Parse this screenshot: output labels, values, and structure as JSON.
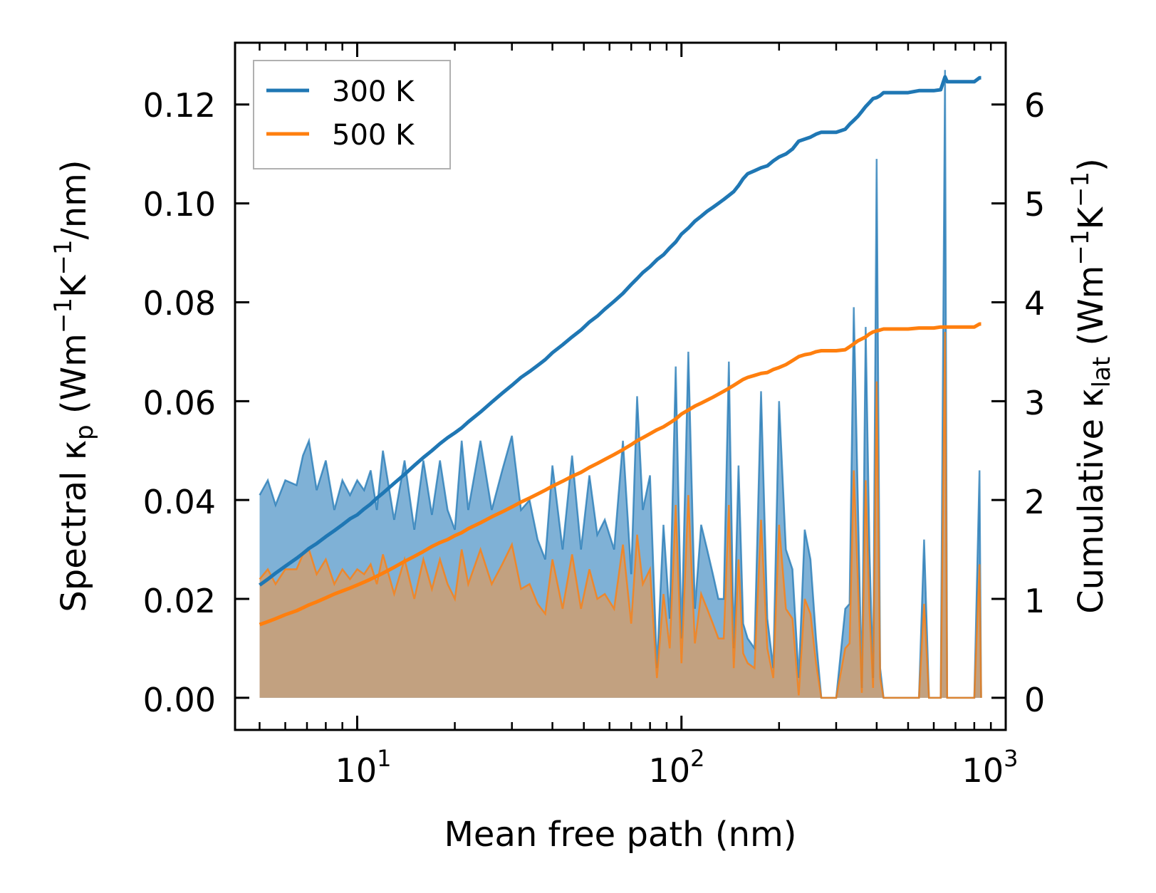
{
  "colors": {
    "t300": "#1f77b4",
    "t500": "#ff7f0e",
    "fill300": "#7fb1d6",
    "fill500": "#c89f78"
  },
  "chart_data": {
    "type": "line",
    "xscale": "log",
    "xlabel": "Mean free path (nm)",
    "ylabel_left": {
      "pre": "Spectral κ",
      "sub": "p",
      "mid": " (Wm",
      "sup1": "−1",
      "k": "K",
      "sup2": "−1",
      "post": "/nm)"
    },
    "ylabel_right": {
      "pre": "Cumulative κ",
      "sub": "lat",
      "mid": " (Wm",
      "sup1": "−1",
      "k": "K",
      "sup2": "−1",
      "post": ")"
    },
    "xlim": [
      4.2,
      1000
    ],
    "ylim_left": [
      -0.0065,
      0.1325
    ],
    "ylim_right": [
      -0.325,
      6.625
    ],
    "x_ticks": [
      {
        "value": 10,
        "base": "10",
        "exp": "1"
      },
      {
        "value": 100,
        "base": "10",
        "exp": "2"
      },
      {
        "value": 1000,
        "base": "10",
        "exp": "3"
      }
    ],
    "y_ticks_left": [
      "0.00",
      "0.02",
      "0.04",
      "0.06",
      "0.08",
      "0.10",
      "0.12"
    ],
    "y_ticks_right": [
      "0",
      "1",
      "2",
      "3",
      "4",
      "5",
      "6"
    ],
    "legend": {
      "position": "top-left",
      "entries": [
        "300 K",
        "500 K"
      ]
    },
    "spectral_300K": {
      "x": [
        5,
        5.3,
        5.6,
        6,
        6.5,
        6.8,
        7.1,
        7.5,
        8,
        8.5,
        9,
        9.5,
        10,
        10.5,
        11,
        11.5,
        12,
        13,
        14,
        15,
        16,
        17,
        18,
        19,
        20,
        21,
        22,
        24,
        26,
        28,
        30,
        32,
        34,
        36,
        38,
        40,
        43,
        46,
        49,
        52,
        55,
        58,
        62,
        66,
        70,
        73,
        76,
        80,
        84,
        88,
        92,
        96,
        100,
        105,
        110,
        115,
        120,
        125,
        130,
        135,
        140,
        145,
        150,
        155,
        160,
        168,
        176,
        184,
        192,
        200,
        210,
        220,
        230,
        240,
        250,
        260,
        270,
        280,
        300,
        320,
        330,
        340,
        350,
        360,
        370,
        380,
        390,
        400,
        410,
        420,
        440,
        470,
        500,
        540,
        560,
        580,
        600,
        630,
        650,
        660,
        670,
        700,
        750,
        800,
        830,
        840
      ],
      "values": [
        0.041,
        0.044,
        0.039,
        0.044,
        0.043,
        0.049,
        0.052,
        0.042,
        0.048,
        0.038,
        0.044,
        0.041,
        0.044,
        0.042,
        0.046,
        0.038,
        0.05,
        0.036,
        0.048,
        0.034,
        0.048,
        0.037,
        0.048,
        0.038,
        0.034,
        0.052,
        0.038,
        0.052,
        0.038,
        0.046,
        0.053,
        0.038,
        0.04,
        0.032,
        0.028,
        0.047,
        0.03,
        0.049,
        0.03,
        0.045,
        0.033,
        0.036,
        0.03,
        0.052,
        0.025,
        0.061,
        0.038,
        0.045,
        0.006,
        0.035,
        0.016,
        0.067,
        0.012,
        0.07,
        0.018,
        0.035,
        0.03,
        0.025,
        0.02,
        0.02,
        0.068,
        0.01,
        0.047,
        0.015,
        0.012,
        0.01,
        0.062,
        0.016,
        0.006,
        0.06,
        0.03,
        0.026,
        0.004,
        0.034,
        0.028,
        0.012,
        0,
        0,
        0,
        0.018,
        0.019,
        0.079,
        0.04,
        0.002,
        0.075,
        0.03,
        0.004,
        0.109,
        0.006,
        0,
        0,
        0,
        0,
        0,
        0.032,
        0,
        0,
        0,
        0.127,
        0,
        0,
        0,
        0,
        0,
        0.046,
        0
      ],
      "cumulative": [
        1.14,
        1.2,
        1.26,
        1.33,
        1.41,
        1.46,
        1.51,
        1.56,
        1.63,
        1.69,
        1.75,
        1.81,
        1.85,
        1.91,
        1.96,
        2.02,
        2.07,
        2.17,
        2.26,
        2.35,
        2.43,
        2.5,
        2.57,
        2.63,
        2.68,
        2.73,
        2.79,
        2.89,
        2.99,
        3.08,
        3.16,
        3.24,
        3.3,
        3.36,
        3.42,
        3.49,
        3.57,
        3.65,
        3.72,
        3.8,
        3.86,
        3.93,
        4.01,
        4.09,
        4.18,
        4.24,
        4.3,
        4.36,
        4.43,
        4.48,
        4.55,
        4.61,
        4.69,
        4.75,
        4.82,
        4.87,
        4.92,
        4.96,
        5.0,
        5.04,
        5.08,
        5.12,
        5.18,
        5.25,
        5.3,
        5.33,
        5.36,
        5.38,
        5.43,
        5.47,
        5.5,
        5.55,
        5.63,
        5.65,
        5.67,
        5.7,
        5.72,
        5.72,
        5.72,
        5.75,
        5.8,
        5.84,
        5.88,
        5.93,
        5.98,
        6.02,
        6.06,
        6.07,
        6.09,
        6.12,
        6.12,
        6.12,
        6.12,
        6.14,
        6.14,
        6.14,
        6.14,
        6.15,
        6.28,
        6.23,
        6.23,
        6.23,
        6.23,
        6.23,
        6.27,
        6.27
      ]
    },
    "spectral_500K": {
      "x": [
        5,
        5.3,
        5.6,
        6,
        6.5,
        6.8,
        7.1,
        7.5,
        8,
        8.5,
        9,
        9.5,
        10,
        10.5,
        11,
        11.5,
        12,
        13,
        14,
        15,
        16,
        17,
        18,
        19,
        20,
        21,
        22,
        24,
        26,
        28,
        30,
        32,
        34,
        36,
        38,
        40,
        43,
        46,
        49,
        52,
        55,
        58,
        62,
        66,
        70,
        73,
        76,
        80,
        84,
        88,
        92,
        96,
        100,
        105,
        110,
        115,
        120,
        125,
        130,
        135,
        140,
        145,
        150,
        155,
        160,
        168,
        176,
        184,
        192,
        200,
        210,
        220,
        230,
        240,
        250,
        260,
        270,
        280,
        300,
        320,
        330,
        340,
        350,
        360,
        370,
        380,
        390,
        400,
        410,
        420,
        440,
        470,
        500,
        540,
        560,
        580,
        600,
        630,
        650,
        660,
        670,
        700,
        750,
        800,
        830,
        840
      ],
      "values": [
        0.024,
        0.026,
        0.023,
        0.026,
        0.026,
        0.029,
        0.03,
        0.025,
        0.028,
        0.023,
        0.026,
        0.024,
        0.026,
        0.025,
        0.027,
        0.023,
        0.029,
        0.021,
        0.028,
        0.02,
        0.028,
        0.022,
        0.028,
        0.023,
        0.02,
        0.03,
        0.023,
        0.03,
        0.023,
        0.027,
        0.031,
        0.022,
        0.023,
        0.019,
        0.017,
        0.028,
        0.018,
        0.029,
        0.018,
        0.026,
        0.02,
        0.021,
        0.018,
        0.031,
        0.015,
        0.033,
        0.023,
        0.026,
        0.004,
        0.021,
        0.01,
        0.039,
        0.007,
        0.041,
        0.011,
        0.021,
        0.018,
        0.015,
        0.012,
        0.012,
        0.039,
        0.006,
        0.028,
        0.009,
        0.007,
        0.006,
        0.036,
        0.01,
        0.004,
        0.035,
        0.018,
        0.016,
        0.0005,
        0.02,
        0.017,
        0.007,
        0,
        0,
        0,
        0.01,
        0.011,
        0.046,
        0.024,
        0.001,
        0.044,
        0.018,
        0.002,
        0.064,
        0.004,
        0,
        0,
        0,
        0,
        0,
        0.019,
        0,
        0,
        0,
        0.074,
        0,
        0,
        0,
        0,
        0,
        0.027,
        0
      ],
      "cumulative": [
        0.74,
        0.77,
        0.8,
        0.84,
        0.88,
        0.91,
        0.94,
        0.97,
        1.01,
        1.05,
        1.08,
        1.11,
        1.14,
        1.17,
        1.2,
        1.23,
        1.26,
        1.32,
        1.38,
        1.43,
        1.48,
        1.53,
        1.57,
        1.6,
        1.64,
        1.67,
        1.71,
        1.77,
        1.83,
        1.88,
        1.93,
        1.98,
        2.02,
        2.06,
        2.1,
        2.14,
        2.19,
        2.24,
        2.28,
        2.33,
        2.37,
        2.41,
        2.46,
        2.51,
        2.56,
        2.6,
        2.63,
        2.67,
        2.71,
        2.74,
        2.78,
        2.82,
        2.87,
        2.91,
        2.95,
        2.98,
        3.01,
        3.04,
        3.07,
        3.1,
        3.13,
        3.16,
        3.19,
        3.22,
        3.24,
        3.26,
        3.28,
        3.29,
        3.32,
        3.34,
        3.37,
        3.41,
        3.45,
        3.47,
        3.48,
        3.5,
        3.51,
        3.51,
        3.51,
        3.52,
        3.55,
        3.58,
        3.61,
        3.63,
        3.65,
        3.68,
        3.7,
        3.71,
        3.72,
        3.73,
        3.73,
        3.73,
        3.73,
        3.74,
        3.74,
        3.74,
        3.74,
        3.75,
        3.75,
        3.75,
        3.75,
        3.75,
        3.75,
        3.75,
        3.78,
        3.78
      ]
    }
  }
}
